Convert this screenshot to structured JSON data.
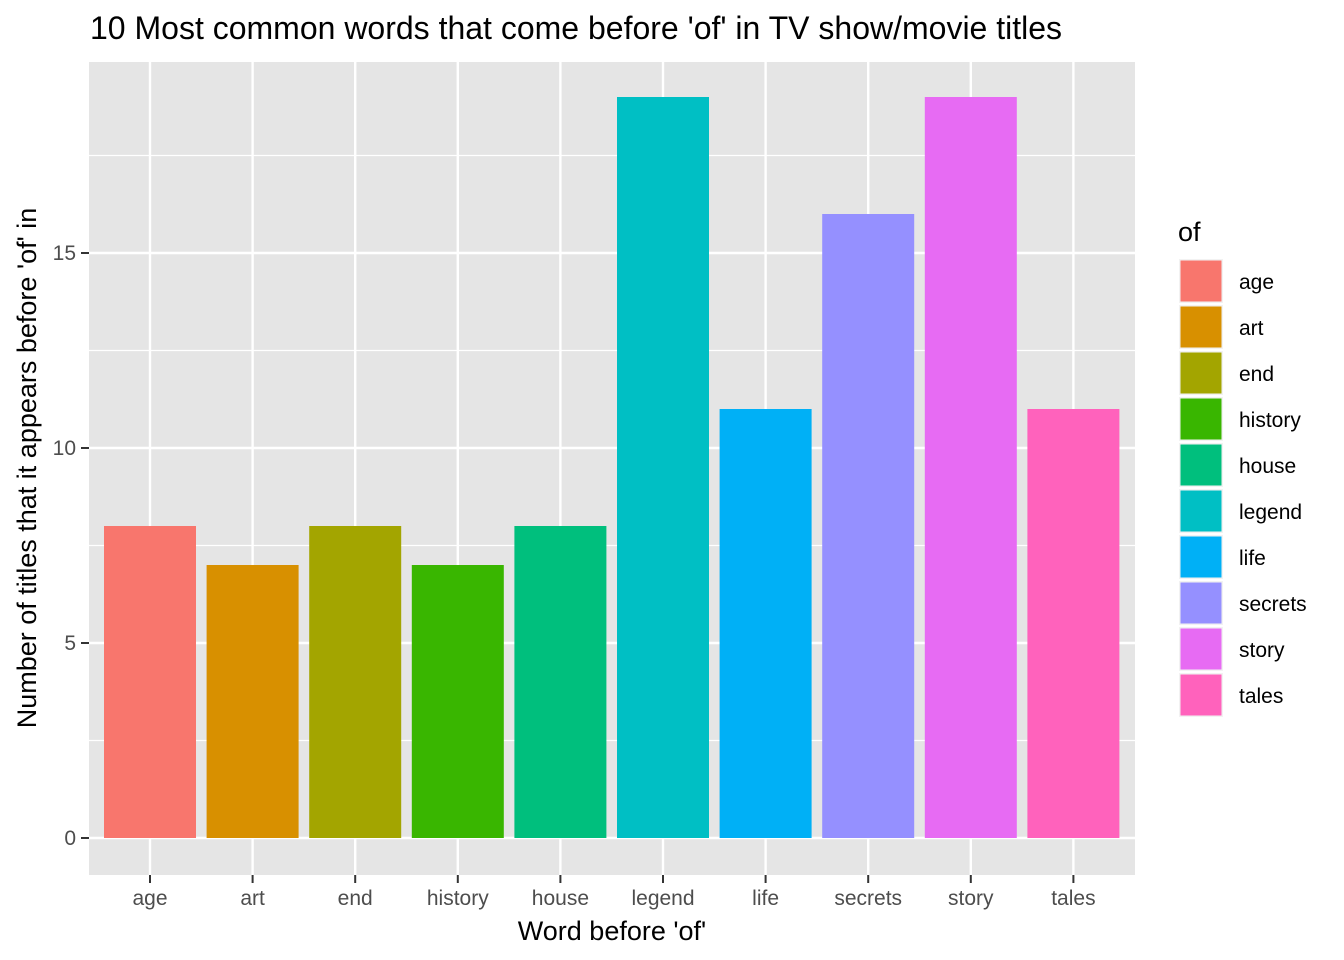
{
  "chart_data": {
    "type": "bar",
    "title": "10 Most common words that come before 'of' in TV show/movie titles",
    "xlabel": "Word before 'of'",
    "ylabel": "Number of titles that it appears before 'of' in",
    "categories": [
      "age",
      "art",
      "end",
      "history",
      "house",
      "legend",
      "life",
      "secrets",
      "story",
      "tales"
    ],
    "values": [
      8,
      7,
      8,
      7,
      8,
      19,
      11,
      16,
      19,
      11
    ],
    "ylim": [
      0,
      20
    ],
    "yticks": [
      "0",
      "5",
      "10",
      "15"
    ],
    "colors": [
      "#F8766D",
      "#D89000",
      "#A3A500",
      "#39B600",
      "#00BF7D",
      "#00BFC4",
      "#00B0F6",
      "#9590FF",
      "#E76BF3",
      "#FF62BC"
    ],
    "grid": true,
    "legend": {
      "title": "of",
      "position": "right",
      "entries": [
        "age",
        "art",
        "end",
        "history",
        "house",
        "legend",
        "life",
        "secrets",
        "story",
        "tales"
      ]
    }
  },
  "style": {
    "panel_background": "#E5E5E5",
    "grid_color": "#FFFFFF"
  }
}
